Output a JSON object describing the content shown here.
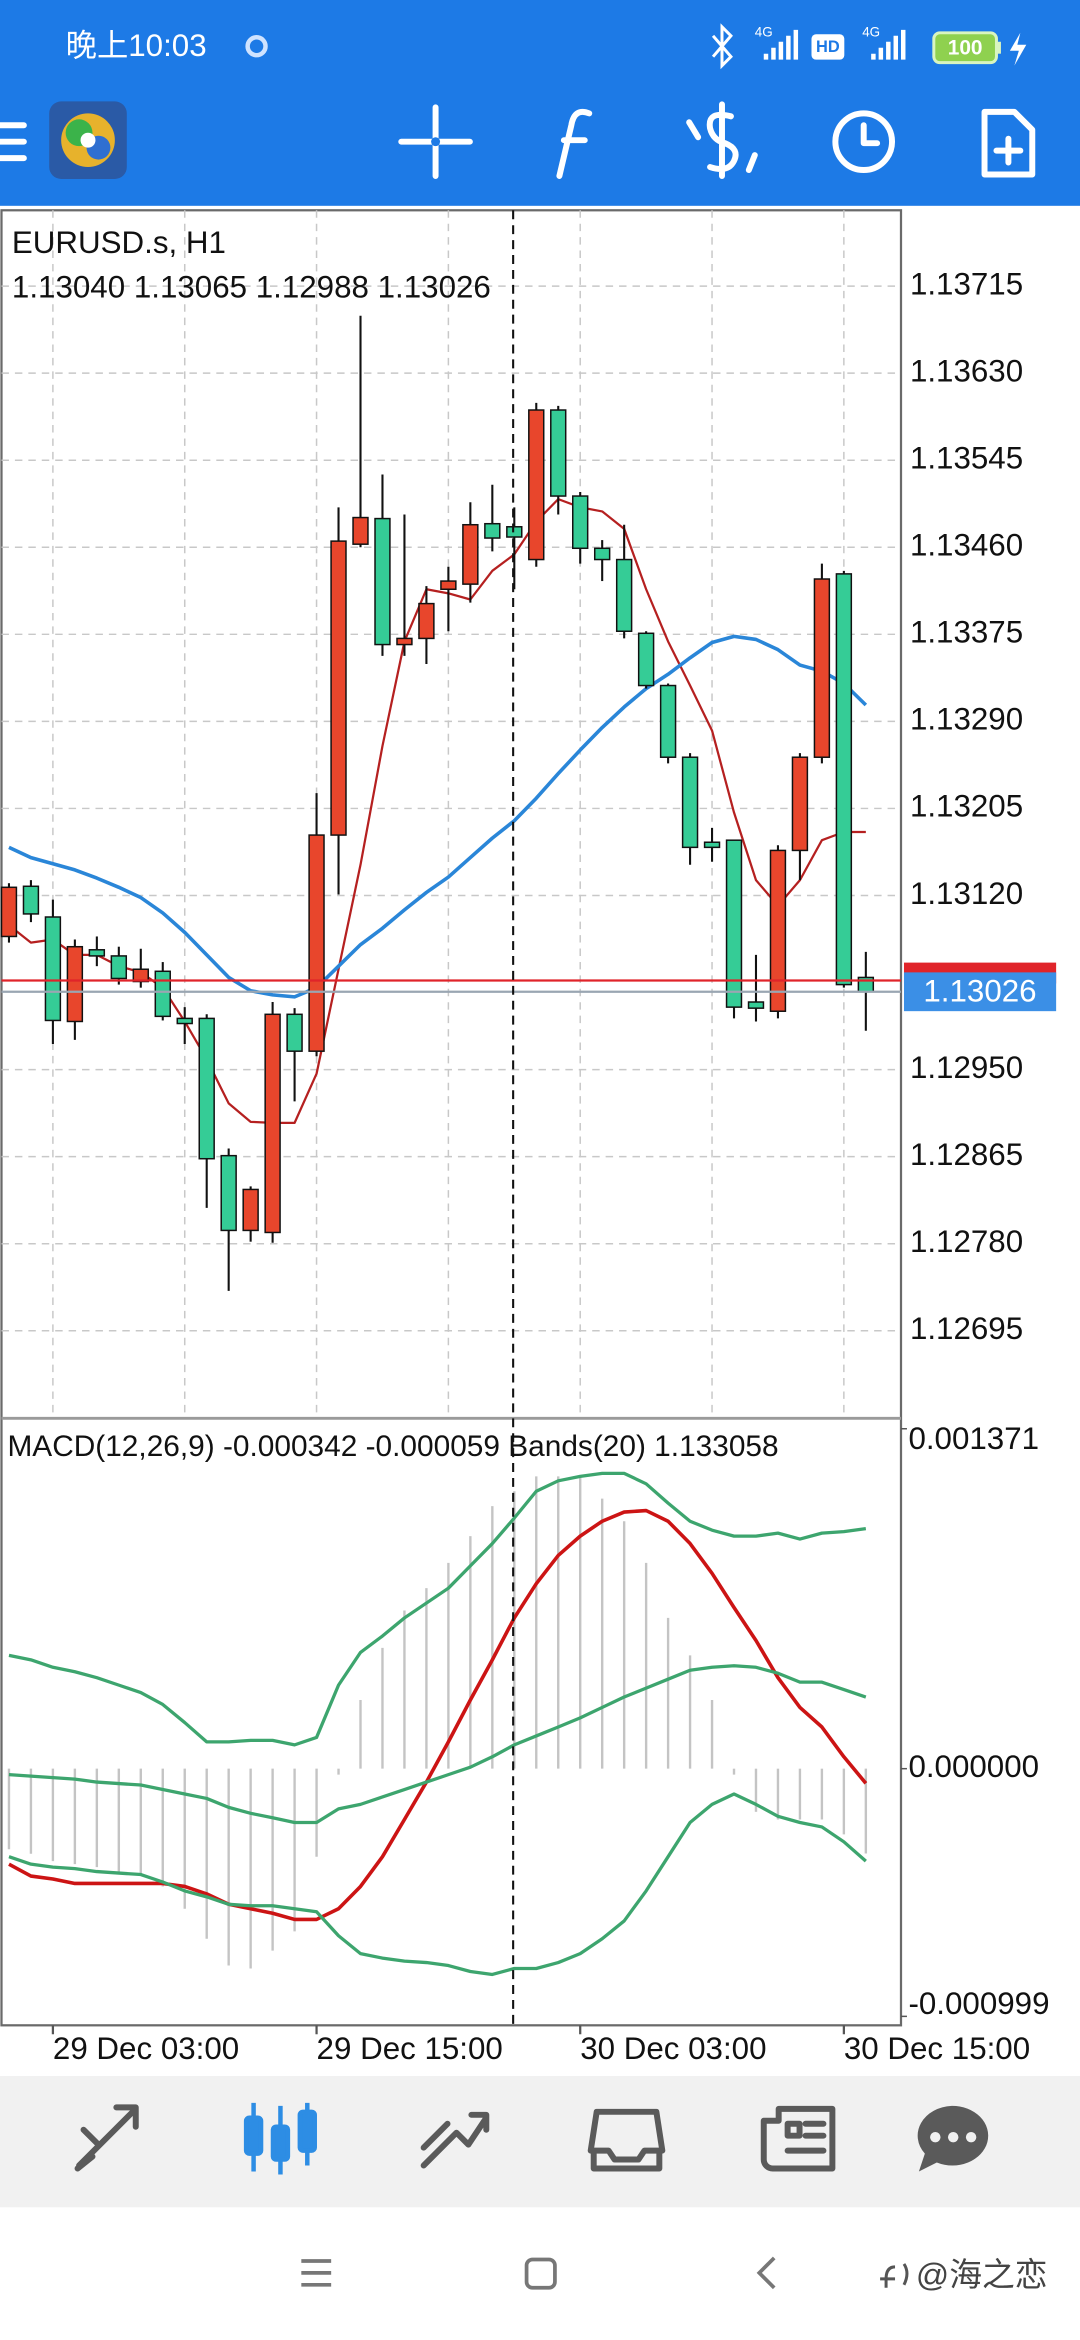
{
  "status_bar": {
    "time": "晚上10:03",
    "network_1": "4G",
    "hd": "HD",
    "network_2": "4G",
    "battery": "100"
  },
  "chart_data": [
    {
      "type": "candlestick",
      "title": "EURUSD.s, H1",
      "subtitle": "1.13040 1.13065 1.12988 1.13026",
      "up_color": "#e8462c",
      "down_color": "#35cc96",
      "grid": true,
      "xlim": [
        -0.34,
        40.6
      ],
      "xticks": [
        {
          "value": 2,
          "label": "29 Dec 03:00"
        },
        {
          "value": 14,
          "label": "29 Dec 15:00"
        },
        {
          "value": 26,
          "label": "30 Dec 03:00"
        },
        {
          "value": 38,
          "label": "30 Dec 15:00"
        }
      ],
      "xminorticks": [
        8,
        20,
        32
      ],
      "ylim": [
        1.12611,
        1.13789
      ],
      "yticks": [
        1.13715,
        {
          "value": 1.1363,
          "label": "1.13630"
        },
        1.13545,
        {
          "value": 1.1346,
          "label": "1.13460"
        },
        1.13375,
        {
          "value": 1.1329,
          "label": "1.13290"
        },
        1.13205,
        {
          "value": 1.1312,
          "label": "1.13120"
        },
        {
          "value": 1.1295,
          "label": "1.12950"
        },
        1.12865,
        {
          "value": 1.1278,
          "label": "1.12780"
        },
        1.12695
      ],
      "bid": 1.13026,
      "bid_label": "1.13026",
      "bid_color": "#3b8fe6",
      "ask": 1.13037,
      "ask_color": "#e0242a",
      "ohlc": [
        [
          1.1308,
          1.13132,
          1.13074,
          1.13128
        ],
        [
          1.13129,
          1.13135,
          1.13094,
          1.13102
        ],
        [
          1.13099,
          1.13116,
          1.12975,
          1.12998
        ],
        [
          1.12997,
          1.13077,
          1.12979,
          1.1307
        ],
        [
          1.13067,
          1.1308,
          1.13051,
          1.13061
        ],
        [
          1.13061,
          1.1307,
          1.13033,
          1.13039
        ],
        [
          1.13036,
          1.13068,
          1.1303,
          1.13048
        ],
        [
          1.13046,
          1.13055,
          1.12998,
          1.13002
        ],
        [
          1.13,
          1.13011,
          1.12975,
          1.12995
        ],
        [
          1.13,
          1.13004,
          1.12815,
          1.12863
        ],
        [
          1.12866,
          1.12873,
          1.12734,
          1.12793
        ],
        [
          1.12793,
          1.12836,
          1.12782,
          1.12833
        ],
        [
          1.12791,
          1.13016,
          1.12781,
          1.13004
        ],
        [
          1.13004,
          1.1301,
          1.12919,
          1.12968
        ],
        [
          1.12968,
          1.1322,
          1.12963,
          1.13179
        ],
        [
          1.13179,
          1.13499,
          1.13121,
          1.13466
        ],
        [
          1.13463,
          1.13686,
          1.1346,
          1.13489
        ],
        [
          1.13488,
          1.13531,
          1.13354,
          1.13365
        ],
        [
          1.13365,
          1.13492,
          1.13354,
          1.13371
        ],
        [
          1.13371,
          1.13422,
          1.13346,
          1.13405
        ],
        [
          1.13419,
          1.13441,
          1.13378,
          1.13427
        ],
        [
          1.13424,
          1.13504,
          1.13406,
          1.13482
        ],
        [
          1.13483,
          1.13521,
          1.13456,
          1.13469
        ],
        [
          1.1348,
          1.13499,
          1.13419,
          1.1347
        ],
        [
          1.13448,
          1.13601,
          1.13441,
          1.13594
        ],
        [
          1.13594,
          1.13598,
          1.13492,
          1.1351
        ],
        [
          1.1351,
          1.13514,
          1.13444,
          1.13459
        ],
        [
          1.13459,
          1.13467,
          1.13427,
          1.13448
        ],
        [
          1.13448,
          1.13482,
          1.13371,
          1.13378
        ],
        [
          1.13376,
          1.13378,
          1.13322,
          1.13325
        ],
        [
          1.13325,
          1.13327,
          1.13249,
          1.13255
        ],
        [
          1.13255,
          1.13259,
          1.1315,
          1.13167
        ],
        [
          1.13172,
          1.13186,
          1.13153,
          1.13167
        ],
        [
          1.13174,
          1.13174,
          1.13,
          1.13011
        ],
        [
          1.13016,
          1.13062,
          1.12997,
          1.1301
        ],
        [
          1.13007,
          1.13169,
          1.13,
          1.13164
        ],
        [
          1.13164,
          1.13259,
          1.13135,
          1.13255
        ],
        [
          1.13255,
          1.13444,
          1.13249,
          1.13429
        ],
        [
          1.13434,
          1.13437,
          1.1303,
          1.13033
        ],
        [
          1.1304,
          1.13065,
          1.12988,
          1.13026
        ]
      ],
      "series": [
        {
          "color": "#b52020",
          "values": [
            1.13091,
            1.13074,
            1.13077,
            1.13062,
            1.13062,
            1.13051,
            1.13045,
            1.1303,
            1.12997,
            1.1296,
            1.12917,
            1.12899,
            1.12898,
            1.12898,
            1.12946,
            1.13048,
            1.1315,
            1.13266,
            1.13368,
            1.13419,
            1.13415,
            1.13409,
            1.13437,
            1.13453,
            1.13485,
            1.13507,
            1.13499,
            1.13495,
            1.13478,
            1.13419,
            1.13368,
            1.13325,
            1.13281,
            1.13201,
            1.13135,
            1.1311,
            1.13135,
            1.13174,
            1.13182,
            1.13182
          ]
        },
        {
          "color": "#2a86d8",
          "values": [
            1.13167,
            1.13157,
            1.13151,
            1.13145,
            1.13137,
            1.13128,
            1.13118,
            1.13103,
            1.13084,
            1.13062,
            1.1304,
            1.13027,
            1.13023,
            1.13021,
            1.1303,
            1.13051,
            1.13072,
            1.13088,
            1.13106,
            1.13123,
            1.13138,
            1.13157,
            1.13176,
            1.13193,
            1.13215,
            1.13239,
            1.13262,
            1.13284,
            1.13304,
            1.13322,
            1.13336,
            1.13352,
            1.13367,
            1.13373,
            1.1337,
            1.1336,
            1.13345,
            1.13339,
            1.13327,
            1.13306
          ]
        }
      ]
    },
    {
      "type": "macd",
      "title": "MACD(12,26,9) -0.000342 -0.000059 Bands(20) 1.133058",
      "color": "#c4c4c4",
      "ylim": [
        -0.000999,
        0.001371
      ],
      "yticks": [
        0.001371,
        {
          "value": 0,
          "label": "0.000000"
        },
        -0.000999
      ],
      "values": [
        -0.000325,
        -0.000343,
        -0.000373,
        -0.000385,
        -0.000397,
        -0.000415,
        -0.000433,
        -0.000475,
        -0.000565,
        -0.000686,
        -0.000794,
        -0.000806,
        -0.000734,
        -0.000656,
        -0.000355,
        -2.4e-05,
        0.000277,
        0.000487,
        0.000638,
        0.000728,
        0.00083,
        0.000938,
        0.001059,
        0.001119,
        0.001179,
        0.001179,
        0.001179,
        0.001089,
        0.000998,
        0.00083,
        0.000608,
        0.000457,
        0.000277,
        -2.4e-05,
        -0.000174,
        -0.000205,
        -0.000205,
        -0.000205,
        -0.000265,
        -0.000342
      ],
      "series": [
        {
          "color": "#cc1414",
          "values": [
            -0.000385,
            -0.000433,
            -0.000445,
            -0.000463,
            -0.000463,
            -0.000463,
            -0.000463,
            -0.000463,
            -0.000475,
            -0.000505,
            -0.000547,
            -0.000565,
            -0.000583,
            -0.000608,
            -0.000608,
            -0.000565,
            -0.000475,
            -0.000355,
            -0.000205,
            -5.4e-05,
            0.000108,
            0.000277,
            0.000439,
            0.000608,
            0.000746,
            0.00086,
            0.000938,
            0.000998,
            0.001035,
            0.001041,
            0.000998,
            0.000908,
            0.000788,
            0.00065,
            0.000517,
            0.000367,
            0.000247,
            0.000168,
            4.8e-05,
            -5.9e-05
          ]
        },
        {
          "color": "#3da56e",
          "values": [
            0.000457,
            0.000439,
            0.000409,
            0.000391,
            0.000367,
            0.000337,
            0.000307,
            0.000259,
            0.000186,
            0.000108,
            0.000108,
            0.000114,
            0.000114,
            9.6e-05,
            0.000126,
            0.000337,
            0.000469,
            0.000535,
            0.000608,
            0.000668,
            0.000728,
            0.000818,
            0.000908,
            0.001011,
            0.001119,
            0.001161,
            0.001179,
            0.001191,
            0.001191,
            0.001149,
            0.001071,
            0.000998,
            0.000962,
            0.000938,
            0.000938,
            0.00095,
            0.000926,
            0.00095,
            0.000956,
            0.000968
          ]
        },
        {
          "color": "#3da56e",
          "values": [
            -2.4e-05,
            -3e-05,
            -3.6e-05,
            -4.2e-05,
            -5.4e-05,
            -6e-05,
            -6.6e-05,
            -8.4e-05,
            -0.000102,
            -0.00012,
            -0.000156,
            -0.00018,
            -0.000198,
            -0.000217,
            -0.000217,
            -0.000162,
            -0.000144,
            -0.000114,
            -8.4e-05,
            -5.4e-05,
            -2.4e-05,
            6e-06,
            4.8e-05,
            9.6e-05,
            0.000132,
            0.000168,
            0.000205,
            0.000247,
            0.000289,
            0.000325,
            0.000361,
            0.000397,
            0.000409,
            0.000415,
            0.000409,
            0.000385,
            0.000349,
            0.000349,
            0.000319,
            0.000289
          ]
        },
        {
          "color": "#3da56e",
          "values": [
            -0.000355,
            -0.000385,
            -0.000397,
            -0.000403,
            -0.000415,
            -0.000421,
            -0.000427,
            -0.000457,
            -0.000493,
            -0.000517,
            -0.000547,
            -0.000553,
            -0.000553,
            -0.000565,
            -0.000577,
            -0.000674,
            -0.000746,
            -0.000764,
            -0.000776,
            -0.000782,
            -0.000794,
            -0.000818,
            -0.00083,
            -0.000806,
            -0.000806,
            -0.000782,
            -0.000746,
            -0.000686,
            -0.000614,
            -0.000493,
            -0.000355,
            -0.000217,
            -0.000144,
            -0.000102,
            -0.000144,
            -0.000192,
            -0.000217,
            -0.000235,
            -0.000295,
            -0.000373
          ]
        }
      ]
    }
  ],
  "watermark": "@海之恋"
}
